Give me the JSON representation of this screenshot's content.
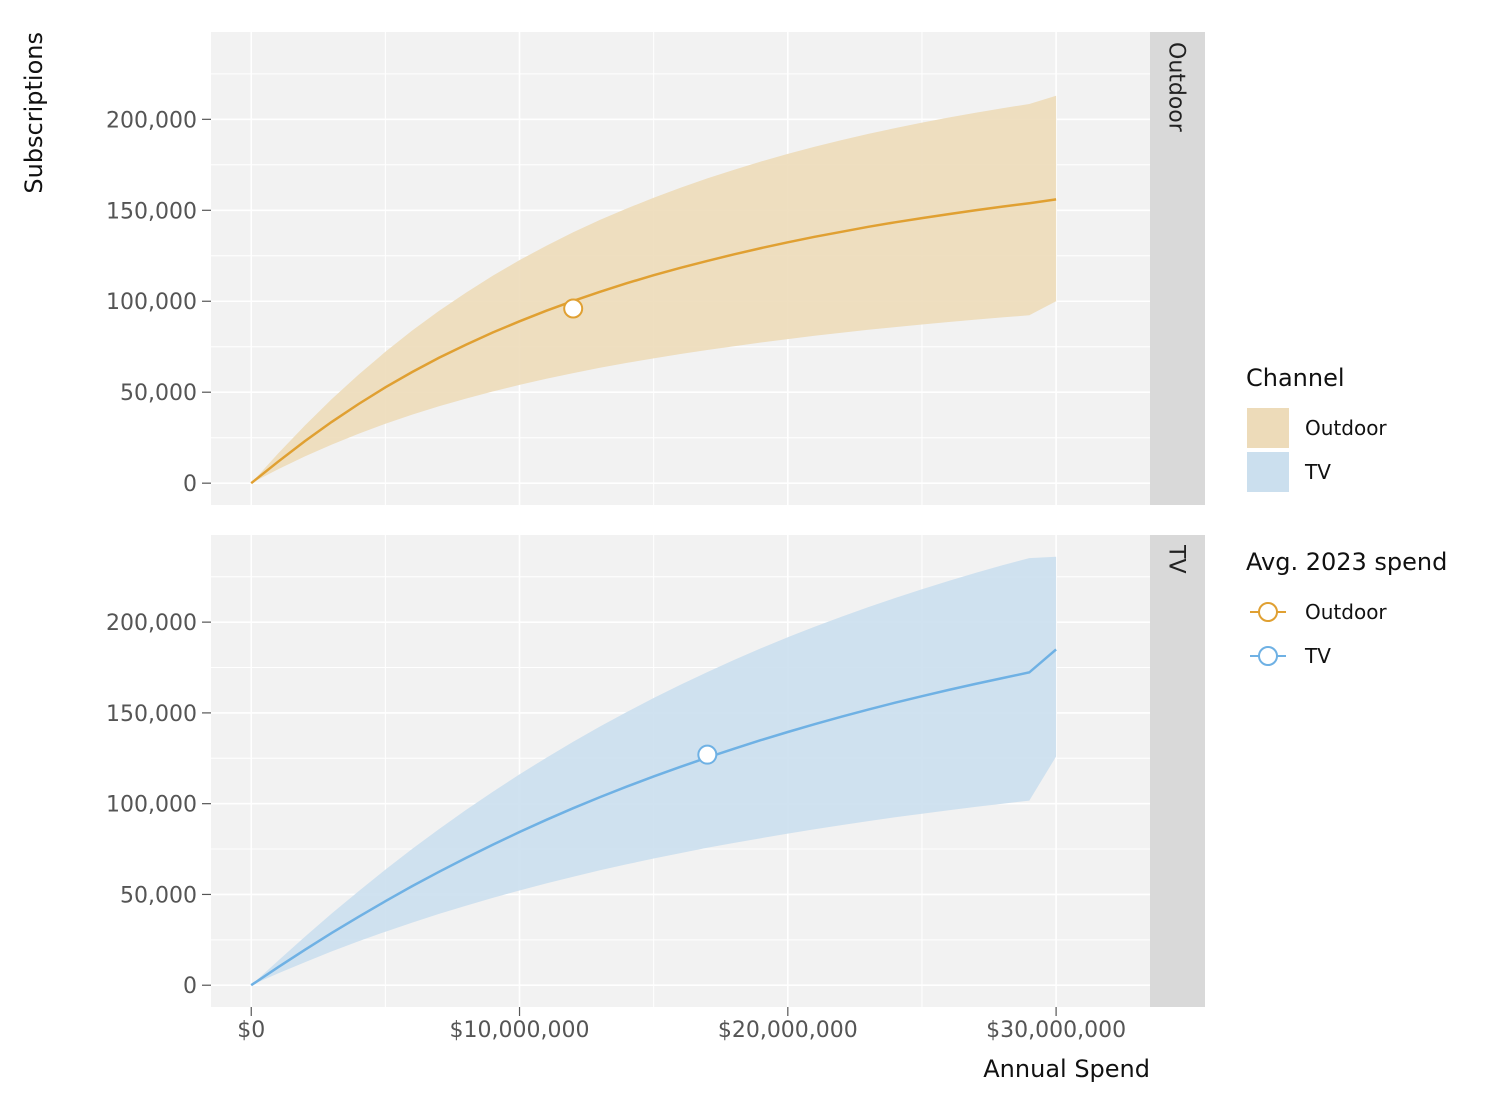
{
  "chart_data": {
    "type": "area",
    "xlabel": "Annual Spend",
    "ylabel": "Subscriptions",
    "xlim": [
      -1500000,
      33500000
    ],
    "ylim": [
      -12000,
      248000
    ],
    "x_ticks": [
      {
        "value": 0,
        "label": "$0"
      },
      {
        "value": 10000000,
        "label": "$10,000,000"
      },
      {
        "value": 20000000,
        "label": "$20,000,000"
      },
      {
        "value": 30000000,
        "label": "$30,000,000"
      }
    ],
    "y_ticks": [
      {
        "value": 0,
        "label": "0"
      },
      {
        "value": 50000,
        "label": "50,000"
      },
      {
        "value": 100000,
        "label": "100,000"
      },
      {
        "value": 150000,
        "label": "150,000"
      },
      {
        "value": 200000,
        "label": "200,000"
      }
    ],
    "grid": true,
    "facets": [
      {
        "strip_label": "Outdoor",
        "color": "#E0A032",
        "band_color": "#EDDBB9",
        "x": [
          0,
          1000000,
          2000000,
          3000000,
          4000000,
          5000000,
          6000000,
          7000000,
          8000000,
          9000000,
          10000000,
          11000000,
          12000000,
          13000000,
          14000000,
          15000000,
          16000000,
          17000000,
          18000000,
          19000000,
          20000000,
          21000000,
          22000000,
          23000000,
          24000000,
          25000000,
          26000000,
          27000000,
          28000000,
          29000000,
          30000000
        ],
        "mean": [
          0,
          11800,
          23100,
          33700,
          43500,
          52700,
          61100,
          68900,
          76100,
          82800,
          89000,
          94800,
          100200,
          105200,
          109900,
          114300,
          118400,
          122200,
          125800,
          129200,
          132400,
          135400,
          138200,
          140900,
          143400,
          145700,
          147900,
          150000,
          152000,
          153900,
          156000
        ],
        "lower": [
          0,
          7600,
          14700,
          21200,
          27200,
          32700,
          37700,
          42300,
          46500,
          50400,
          54000,
          57400,
          60500,
          63400,
          66100,
          68600,
          71000,
          73200,
          75300,
          77300,
          79200,
          81000,
          82700,
          84300,
          85800,
          87200,
          88600,
          89900,
          91100,
          92300,
          100000
        ],
        "upper": [
          0,
          16300,
          31700,
          46200,
          59700,
          72200,
          83900,
          94700,
          104700,
          114000,
          122600,
          130500,
          137900,
          144700,
          151000,
          156900,
          162400,
          167500,
          172300,
          176800,
          181000,
          184900,
          188600,
          192000,
          195200,
          198200,
          201000,
          203600,
          206100,
          208400,
          213000
        ],
        "avg_spend": {
          "x": 12000000,
          "y": 96000
        }
      },
      {
        "strip_label": "TV",
        "color": "#6FB1E4",
        "band_color": "#CBDFEE",
        "x": [
          0,
          1000000,
          2000000,
          3000000,
          4000000,
          5000000,
          6000000,
          7000000,
          8000000,
          9000000,
          10000000,
          11000000,
          12000000,
          13000000,
          14000000,
          15000000,
          16000000,
          17000000,
          18000000,
          19000000,
          20000000,
          21000000,
          22000000,
          23000000,
          24000000,
          25000000,
          26000000,
          27000000,
          28000000,
          29000000,
          30000000
        ],
        "mean": [
          0,
          9900,
          19500,
          28800,
          37700,
          46300,
          54600,
          62500,
          70100,
          77400,
          84400,
          91100,
          97500,
          103600,
          109400,
          115000,
          120300,
          125400,
          130300,
          135000,
          139500,
          143800,
          147900,
          151800,
          155600,
          159200,
          162700,
          166000,
          169200,
          172300,
          185000
        ],
        "lower": [
          0,
          6500,
          12700,
          18600,
          24200,
          29500,
          34500,
          39300,
          43800,
          48100,
          52200,
          56100,
          59800,
          63300,
          66600,
          69800,
          72800,
          75700,
          78400,
          81000,
          83500,
          85900,
          88200,
          90400,
          92500,
          94500,
          96400,
          98200,
          100000,
          101700,
          126000
        ],
        "upper": [
          0,
          13500,
          26700,
          39500,
          51800,
          63700,
          75100,
          86000,
          96500,
          106500,
          116100,
          125300,
          134100,
          142500,
          150500,
          158200,
          165500,
          172500,
          179200,
          185600,
          191700,
          197500,
          203000,
          208300,
          213300,
          218100,
          222700,
          227100,
          231300,
          235300,
          236000
        ],
        "avg_spend": {
          "x": 17000000,
          "y": 127000
        }
      }
    ],
    "legend": {
      "placement": "right",
      "groups": [
        {
          "title": "Channel",
          "kind": "fill",
          "entries": [
            "Outdoor",
            "TV"
          ]
        },
        {
          "title": "Avg. 2023 spend",
          "kind": "point-line",
          "entries": [
            "Outdoor",
            "TV"
          ]
        }
      ]
    }
  }
}
